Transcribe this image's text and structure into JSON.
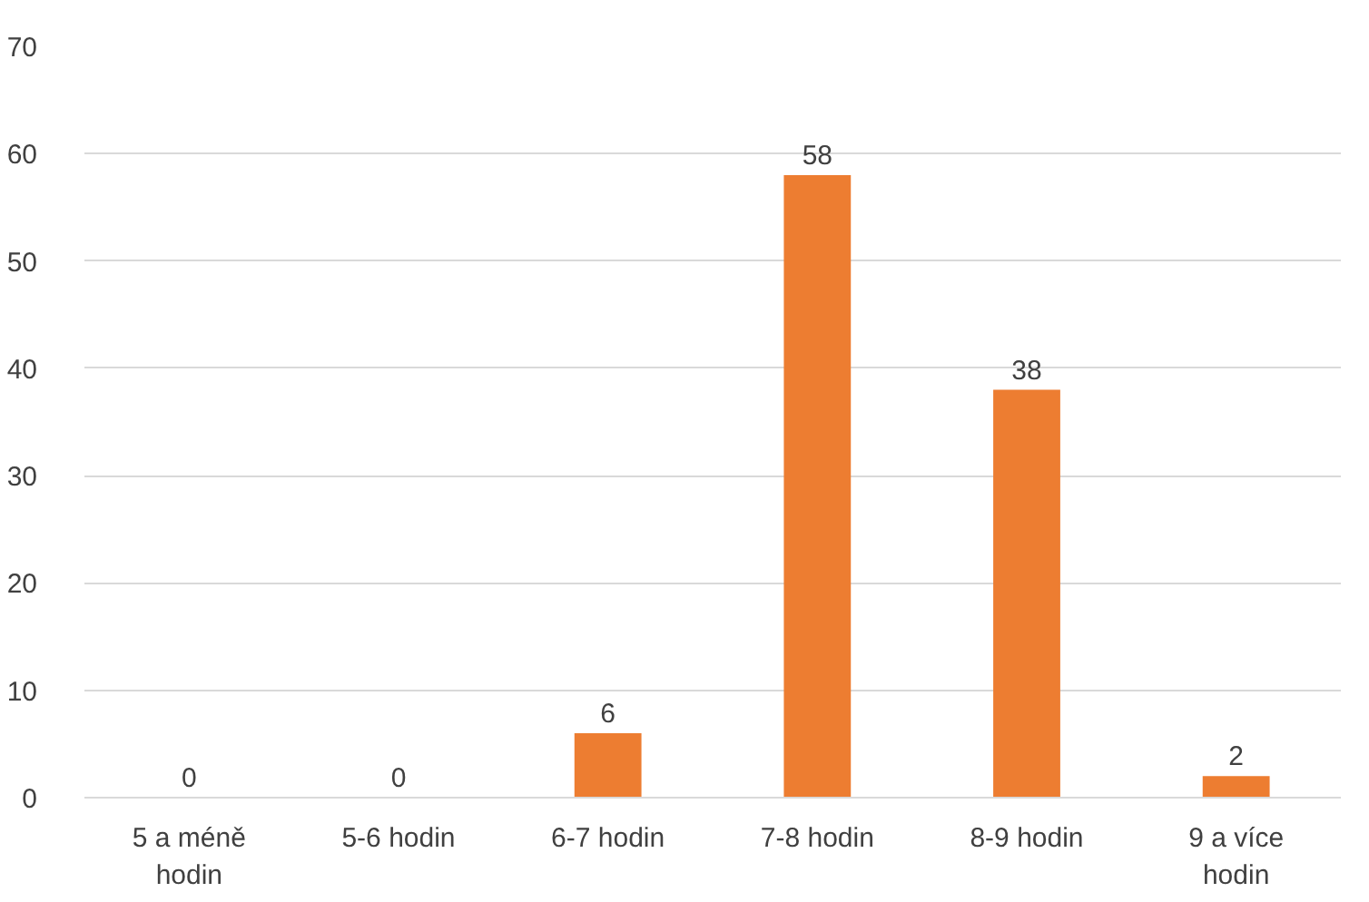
{
  "chart_data": {
    "type": "bar",
    "categories": [
      "5 a méně hodin",
      "5-6 hodin",
      "6-7 hodin",
      "7-8 hodin",
      "8-9 hodin",
      "9 a více hodin"
    ],
    "values": [
      0,
      0,
      6,
      58,
      38,
      2
    ],
    "color": "#ed7d31",
    "ylim": [
      0,
      70
    ],
    "yticks": [
      0,
      10,
      20,
      30,
      40,
      50,
      60,
      70
    ],
    "grid": "y",
    "data_labels": true
  }
}
